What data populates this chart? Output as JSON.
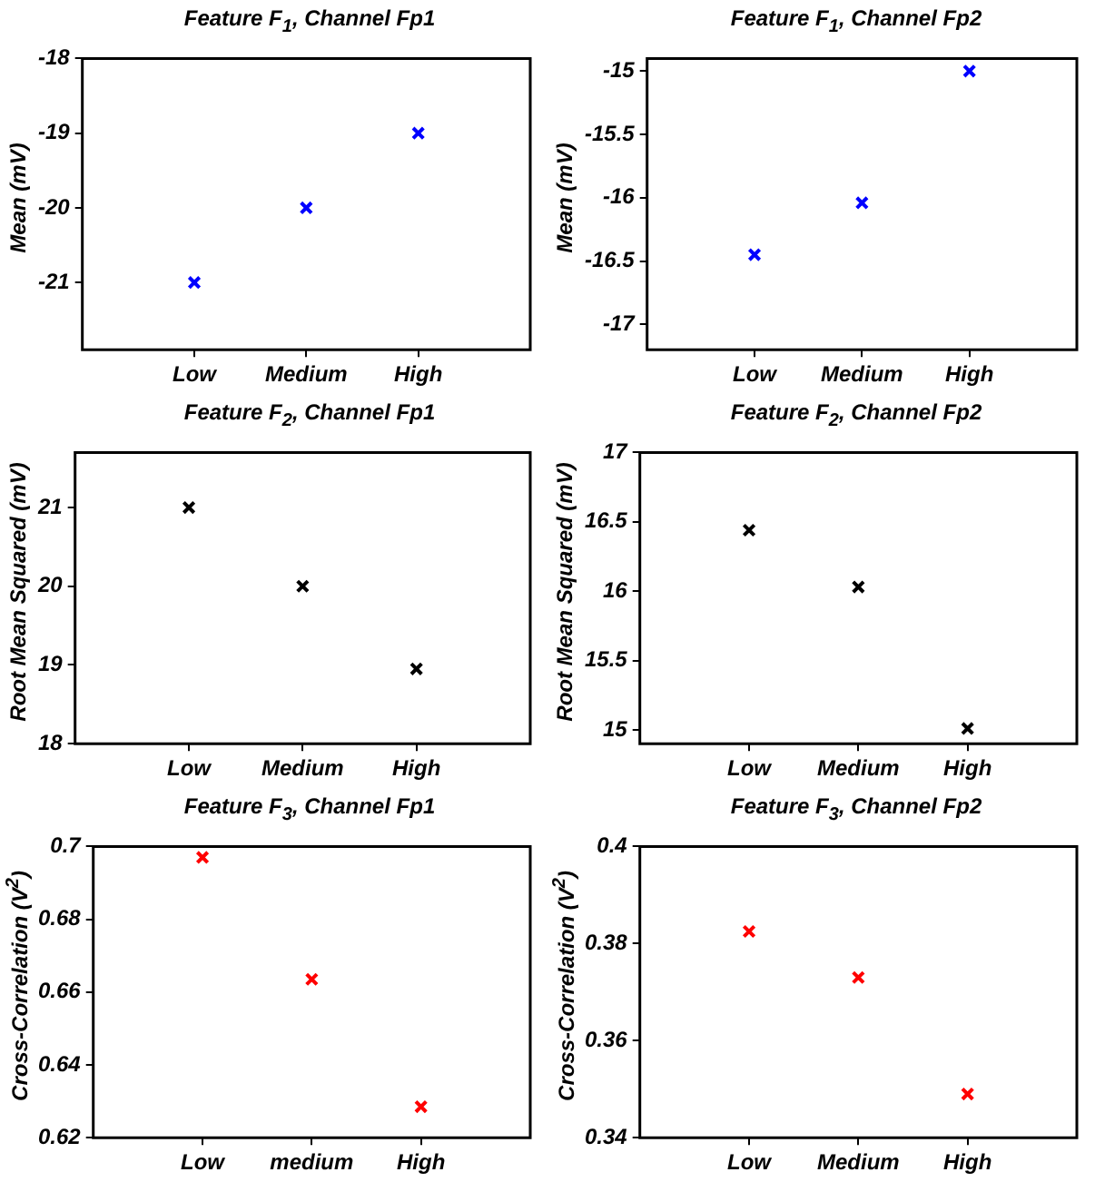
{
  "chart_data": [
    {
      "type": "scatter",
      "title": "Feature F$_{1}$, Channel Fp1",
      "ylabel": "Mean (mV)",
      "categories": [
        "Low",
        "Medium",
        "High"
      ],
      "series": [
        {
          "color": "#0000ff",
          "values": [
            -21,
            -20,
            -19
          ]
        }
      ],
      "ylim": [
        -21.9,
        -18
      ],
      "yticks": [
        -21,
        -20,
        -19,
        -18
      ],
      "marker": "cross",
      "grid": false
    },
    {
      "type": "scatter",
      "title": "Feature F$_{1}$, Channel Fp2",
      "ylabel": "Mean (mV)",
      "categories": [
        "Low",
        "Medium",
        "High"
      ],
      "series": [
        {
          "color": "#0000ff",
          "values": [
            -16.45,
            -16.04,
            -15
          ]
        }
      ],
      "ylim": [
        -17.2,
        -14.9
      ],
      "yticks": [
        -17,
        -16.5,
        -16,
        -15.5,
        -15
      ],
      "marker": "cross",
      "grid": false
    },
    {
      "type": "scatter",
      "title": "Feature F$_{2}$, Channel Fp1",
      "ylabel": "Root Mean Squared (mV)",
      "categories": [
        "Low",
        "Medium",
        "High"
      ],
      "series": [
        {
          "color": "#000000",
          "values": [
            21,
            20,
            18.95
          ]
        }
      ],
      "ylim": [
        18,
        21.7
      ],
      "yticks": [
        18,
        19,
        20,
        21
      ],
      "marker": "cross",
      "grid": false
    },
    {
      "type": "scatter",
      "title": "Feature F$_{2}$, Channel Fp2",
      "ylabel": "Root Mean Squared (mV)",
      "categories": [
        "Low",
        "Medium",
        "High"
      ],
      "series": [
        {
          "color": "#000000",
          "values": [
            16.44,
            16.03,
            15.01
          ]
        }
      ],
      "ylim": [
        14.9,
        17
      ],
      "yticks": [
        15,
        15.5,
        16,
        16.5,
        17
      ],
      "marker": "cross",
      "grid": false
    },
    {
      "type": "scatter",
      "title": "Feature F$_{3}$, Channel Fp1",
      "ylabel": "Cross-Correlation (V$^{2}$)",
      "categories": [
        "Low",
        "medium",
        "High"
      ],
      "series": [
        {
          "color": "#ff0000",
          "values": [
            0.697,
            0.6635,
            0.6285
          ]
        }
      ],
      "ylim": [
        0.62,
        0.7
      ],
      "yticks": [
        0.62,
        0.64,
        0.66,
        0.68,
        0.7
      ],
      "marker": "cross",
      "grid": false
    },
    {
      "type": "scatter",
      "title": "Feature F$_{3}$, Channel Fp2",
      "ylabel": "Cross-Correlation (V$^{2}$)",
      "categories": [
        "Low",
        "Medium",
        "High"
      ],
      "series": [
        {
          "color": "#ff0000",
          "values": [
            0.3825,
            0.373,
            0.349
          ]
        }
      ],
      "ylim": [
        0.34,
        0.4
      ],
      "yticks": [
        0.34,
        0.36,
        0.38,
        0.4
      ],
      "marker": "cross",
      "grid": false
    }
  ]
}
